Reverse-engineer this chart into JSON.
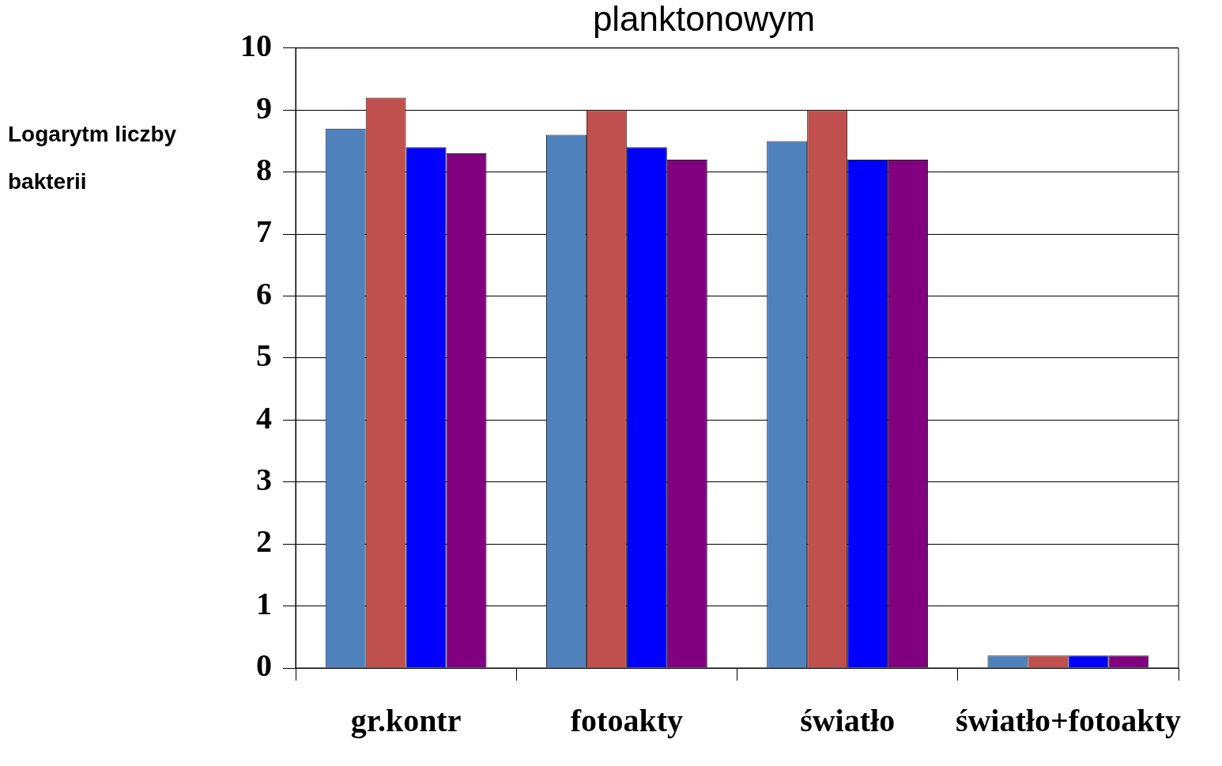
{
  "chart_data": {
    "type": "bar",
    "title": "planktonowym",
    "ylabel": "Logarytm liczby bakterii",
    "categories": [
      "gr.kontr",
      "fotoakty",
      "światło",
      "światło+fotoakty"
    ],
    "series": [
      {
        "color": "#4f81bd",
        "values": [
          8.7,
          8.6,
          8.5,
          0.2
        ]
      },
      {
        "color": "#c0504d",
        "values": [
          9.2,
          9.0,
          9.0,
          0.2
        ]
      },
      {
        "color": "#0000ff",
        "values": [
          8.4,
          8.4,
          8.2,
          0.2
        ]
      },
      {
        "color": "#800080",
        "values": [
          8.3,
          8.2,
          8.2,
          0.2
        ]
      }
    ],
    "ylim": [
      0,
      10
    ],
    "yticks": [
      0,
      1,
      2,
      3,
      4,
      5,
      6,
      7,
      8,
      9,
      10
    ],
    "grid": "y",
    "legend": false
  }
}
